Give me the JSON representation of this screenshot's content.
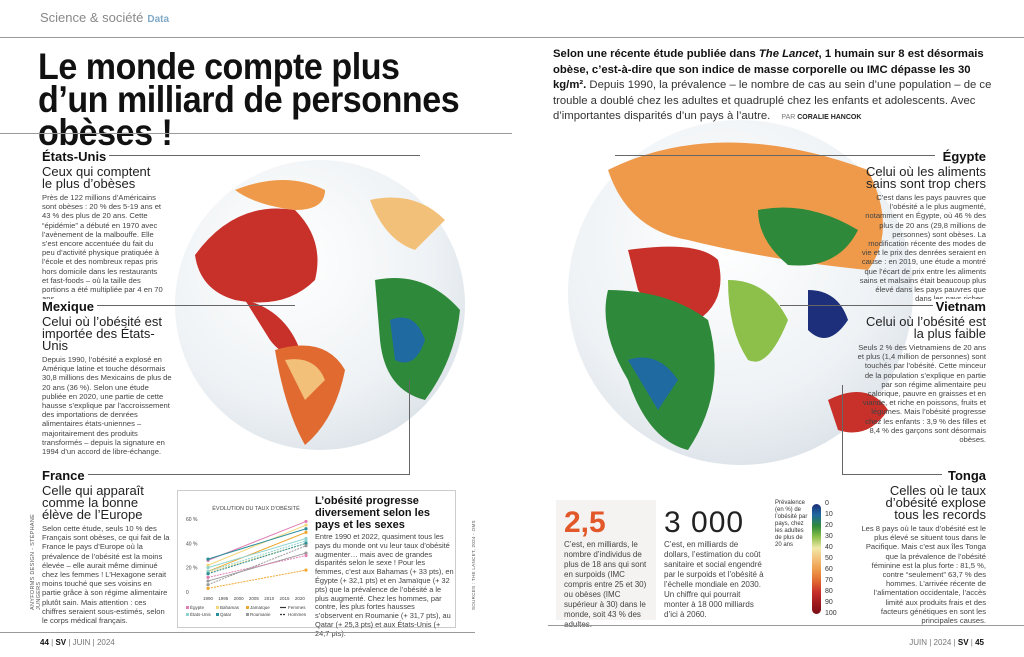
{
  "header": {
    "section": "Science & société",
    "tag": "Data"
  },
  "title": "Le monde compte plus d’un milliard de personnes obèses !",
  "intro": {
    "bold_1": "Selon une récente étude publiée dans ",
    "bold_italic": "The Lancet",
    "bold_2": ", 1 humain sur 8 est désormais obèse, c’est-à-dire que son indice de masse corporelle ou IMC dépasse les 30 kg/m².",
    "text": " Depuis 1990, la prévalence – le nombre de cas au sein d’une population – de ce trouble a doublé chez les adultes et quadruplé chez les enfants et adolescents. Avec d’importantes disparités d’un pays à l’autre.",
    "by": "PAR",
    "author": "CORALIE HANCOK"
  },
  "countries": [
    {
      "name": "États-Unis",
      "subtitle": "Ceux qui comptent le plus d’obèses",
      "text": "Près de 122 millions d’Américains sont obèses : 20 % des 5-19 ans et 43 % des plus de 20 ans. Cette “épidémie” a débuté en 1970 avec l’avènement de la malbouffe. Elle s’est encore accentuée du fait du peu d’activité physique pratiquée à l’école et des nombreux repas pris hors domicile dans les restaurants et fast-foods – où la taille des portions a été multipliée par 4 en 70 ans."
    },
    {
      "name": "Mexique",
      "subtitle": "Celui où l’obésité est importée des États-Unis",
      "text": "Depuis 1990, l’obésité a explosé en Amérique latine et touche désormais 30,8 millions des Mexicains de plus de 20 ans (36 %). Selon une étude publiée en 2020, une partie de cette hausse s’explique par l’accroissement des importations de denrées alimentaires états-uniennes – majoritairement des produits transformés – depuis la signature en 1994 d’un accord de libre-échange."
    },
    {
      "name": "France",
      "subtitle": "Celle qui apparaît comme la bonne élève de l’Europe",
      "text": "Selon cette étude, seuls 10 % des Français sont obèses, ce qui fait de la France le pays d’Europe où la prévalence de l’obésité est la moins élevée – elle aurait même diminué chez les femmes ! L’Hexagone serait moins touché que ses voisins en partie grâce à son régime alimentaire plutôt sain. Mais attention : ces chiffres seraient sous-estimés, selon le corps médical français."
    },
    {
      "name": "Égypte",
      "subtitle": "Celui où les aliments sains sont trop chers",
      "text": "C’est dans les pays pauvres que l’obésité a le plus augmenté, notamment en Égypte, où 46 % des plus de 20 ans (29,8 millions de personnes) sont obèses. La modification récente des modes de vie et le prix des denrées seraient en cause : en 2019, une étude a montré que l’écart de prix entre les aliments sains et malsains était beaucoup plus élevé dans les pays pauvres que dans les pays riches."
    },
    {
      "name": "Vietnam",
      "subtitle": "Celui où l’obésité est la plus faible",
      "text": "Seuls 2 % des Vietnamiens de 20 ans et plus (1,4 million de personnes) sont touchés par l’obésité. Cette minceur de la population s’explique en partie par son régime alimentaire peu calorique, pauvre en graisses et en viande, et riche en poissons, fruits et légumes. Mais l’obésité progresse chez les enfants : 3,9 % des filles et 8,4 % des garçons sont désormais obèses."
    },
    {
      "name": "Tonga",
      "subtitle": "Celles où le taux d’obésité explose tous les records",
      "text": "Les 8 pays où le taux d’obésité est le plus élevé se situent tous dans le Pacifique. Mais c’est aux îles Tonga que la prévalence de l’obésité féminine est la plus forte : 81,5 %, contre “seulement” 63,7 % des hommes. L’arrivée récente de l’alimentation occidentale, l’accès limité aux produits frais et des facteurs génétiques en sont les principales causes."
    }
  ],
  "credit": "ANYFORMS DESIGN - STÉPHANE JUNGERS",
  "sources": "SOURCES : THE LANCET, 2024 - OMS",
  "chart_data": {
    "type": "line",
    "title": "ÉVOLUTION DU TAUX D’OBÉSITÉ",
    "x": [
      1990,
      2022
    ],
    "xticks": [
      "1990",
      "1995",
      "2000",
      "2005",
      "2010",
      "2015",
      "2020"
    ],
    "yticks": [
      "0",
      "20 %",
      "40 %",
      "60 %"
    ],
    "ylim": [
      0,
      60
    ],
    "grid": false,
    "legend_countries": [
      {
        "name": "Égypte",
        "color": "#e07fb4"
      },
      {
        "name": "Bahamas",
        "color": "#f2d77a"
      },
      {
        "name": "Jamaïque",
        "color": "#f0a830"
      },
      {
        "name": "États-Unis",
        "color": "#8fd3d0"
      },
      {
        "name": "Qatar",
        "color": "#2a8f9a"
      },
      {
        "name": "Roumanie",
        "color": "#9a9a9a"
      }
    ],
    "legend_sex": [
      "Femmes",
      "Hommes"
    ],
    "series": [
      {
        "name": "Égypte – Femmes",
        "color": "#e07fb4",
        "dash": false,
        "values": [
          26,
          58
        ]
      },
      {
        "name": "Bahamas – Femmes",
        "color": "#f2d77a",
        "dash": false,
        "values": [
          22,
          55
        ]
      },
      {
        "name": "Jamaïque – Femmes",
        "color": "#f0a830",
        "dash": false,
        "values": [
          17,
          49
        ]
      },
      {
        "name": "États-Unis – Femmes",
        "color": "#8fd3d0",
        "dash": false,
        "values": [
          20,
          44
        ]
      },
      {
        "name": "Qatar – Femmes",
        "color": "#2a8f9a",
        "dash": false,
        "values": [
          27,
          52
        ]
      },
      {
        "name": "Roumanie – Femmes",
        "color": "#9a9a9a",
        "dash": false,
        "values": [
          9,
          32
        ]
      },
      {
        "name": "Égypte – Hommes",
        "color": "#e07fb4",
        "dash": true,
        "values": [
          12,
          30
        ]
      },
      {
        "name": "Bahamas – Hommes",
        "color": "#f2d77a",
        "dash": true,
        "values": [
          16,
          40
        ]
      },
      {
        "name": "Jamaïque – Hommes",
        "color": "#f0a830",
        "dash": true,
        "values": [
          3,
          18
        ]
      },
      {
        "name": "États-Unis – Hommes",
        "color": "#8fd3d0",
        "dash": true,
        "values": [
          17,
          42
        ]
      },
      {
        "name": "Qatar – Hommes",
        "color": "#2a8f9a",
        "dash": true,
        "values": [
          15,
          40
        ]
      },
      {
        "name": "Roumanie – Hommes",
        "color": "#9a9a9a",
        "dash": true,
        "values": [
          6,
          38
        ]
      }
    ]
  },
  "chart_article": {
    "title": "L’obésité progresse diversement selon les pays et les sexes",
    "text": "Entre 1990 et 2022, quasiment tous les pays du monde ont vu leur taux d’obésité augmenter… mais avec de grandes disparités selon le sexe ! Pour les femmes, c’est aux Bahamas (+ 33 pts), en Égypte (+ 32,1 pts) et en Jamaïque (+ 32 pts) que la prévalence de l’obésité a le plus augmenté. Chez les hommes, par contre, les plus fortes hausses s’observent en Roumanie (+ 31,7 pts), au Qatar (+ 25,3 pts) et aux États-Unis (+ 24,7 pts)."
  },
  "stats": [
    {
      "value": "2,5",
      "text": "C’est, en milliards, le nombre d’individus de plus de 18 ans qui sont en surpoids (IMC compris entre 25 et 30) ou obèses (IMC supérieur à 30) dans le monde, soit 43 % des adultes."
    },
    {
      "value": "3 000",
      "text": "C’est, en milliards de dollars, l’estimation du coût sanitaire et social engendré par le surpoids et l’obésité à l’échelle mondiale en 2030. Un chiffre qui pourrait monter à 18 000 milliards d’ici à 2060."
    }
  ],
  "colorbar": {
    "label": "Prévalence (en %) de l’obésité par pays, chez les adultes de plus de 20 ans",
    "ticks": [
      "0",
      "10",
      "20",
      "30",
      "40",
      "50",
      "60",
      "70",
      "80",
      "90",
      "100"
    ],
    "colors": [
      "#1d2f7a",
      "#1f6aa0",
      "#2e8a3a",
      "#8cc04a",
      "#f1e9a8",
      "#f3c07a",
      "#ee9a4a",
      "#e06a30",
      "#c8302a",
      "#a01a20",
      "#7a0e15"
    ]
  },
  "footer": {
    "left_page": "44",
    "left_date": "JUIN | 2024",
    "logo": "SV",
    "right_date": "JUIN | 2024",
    "right_page": "45"
  }
}
